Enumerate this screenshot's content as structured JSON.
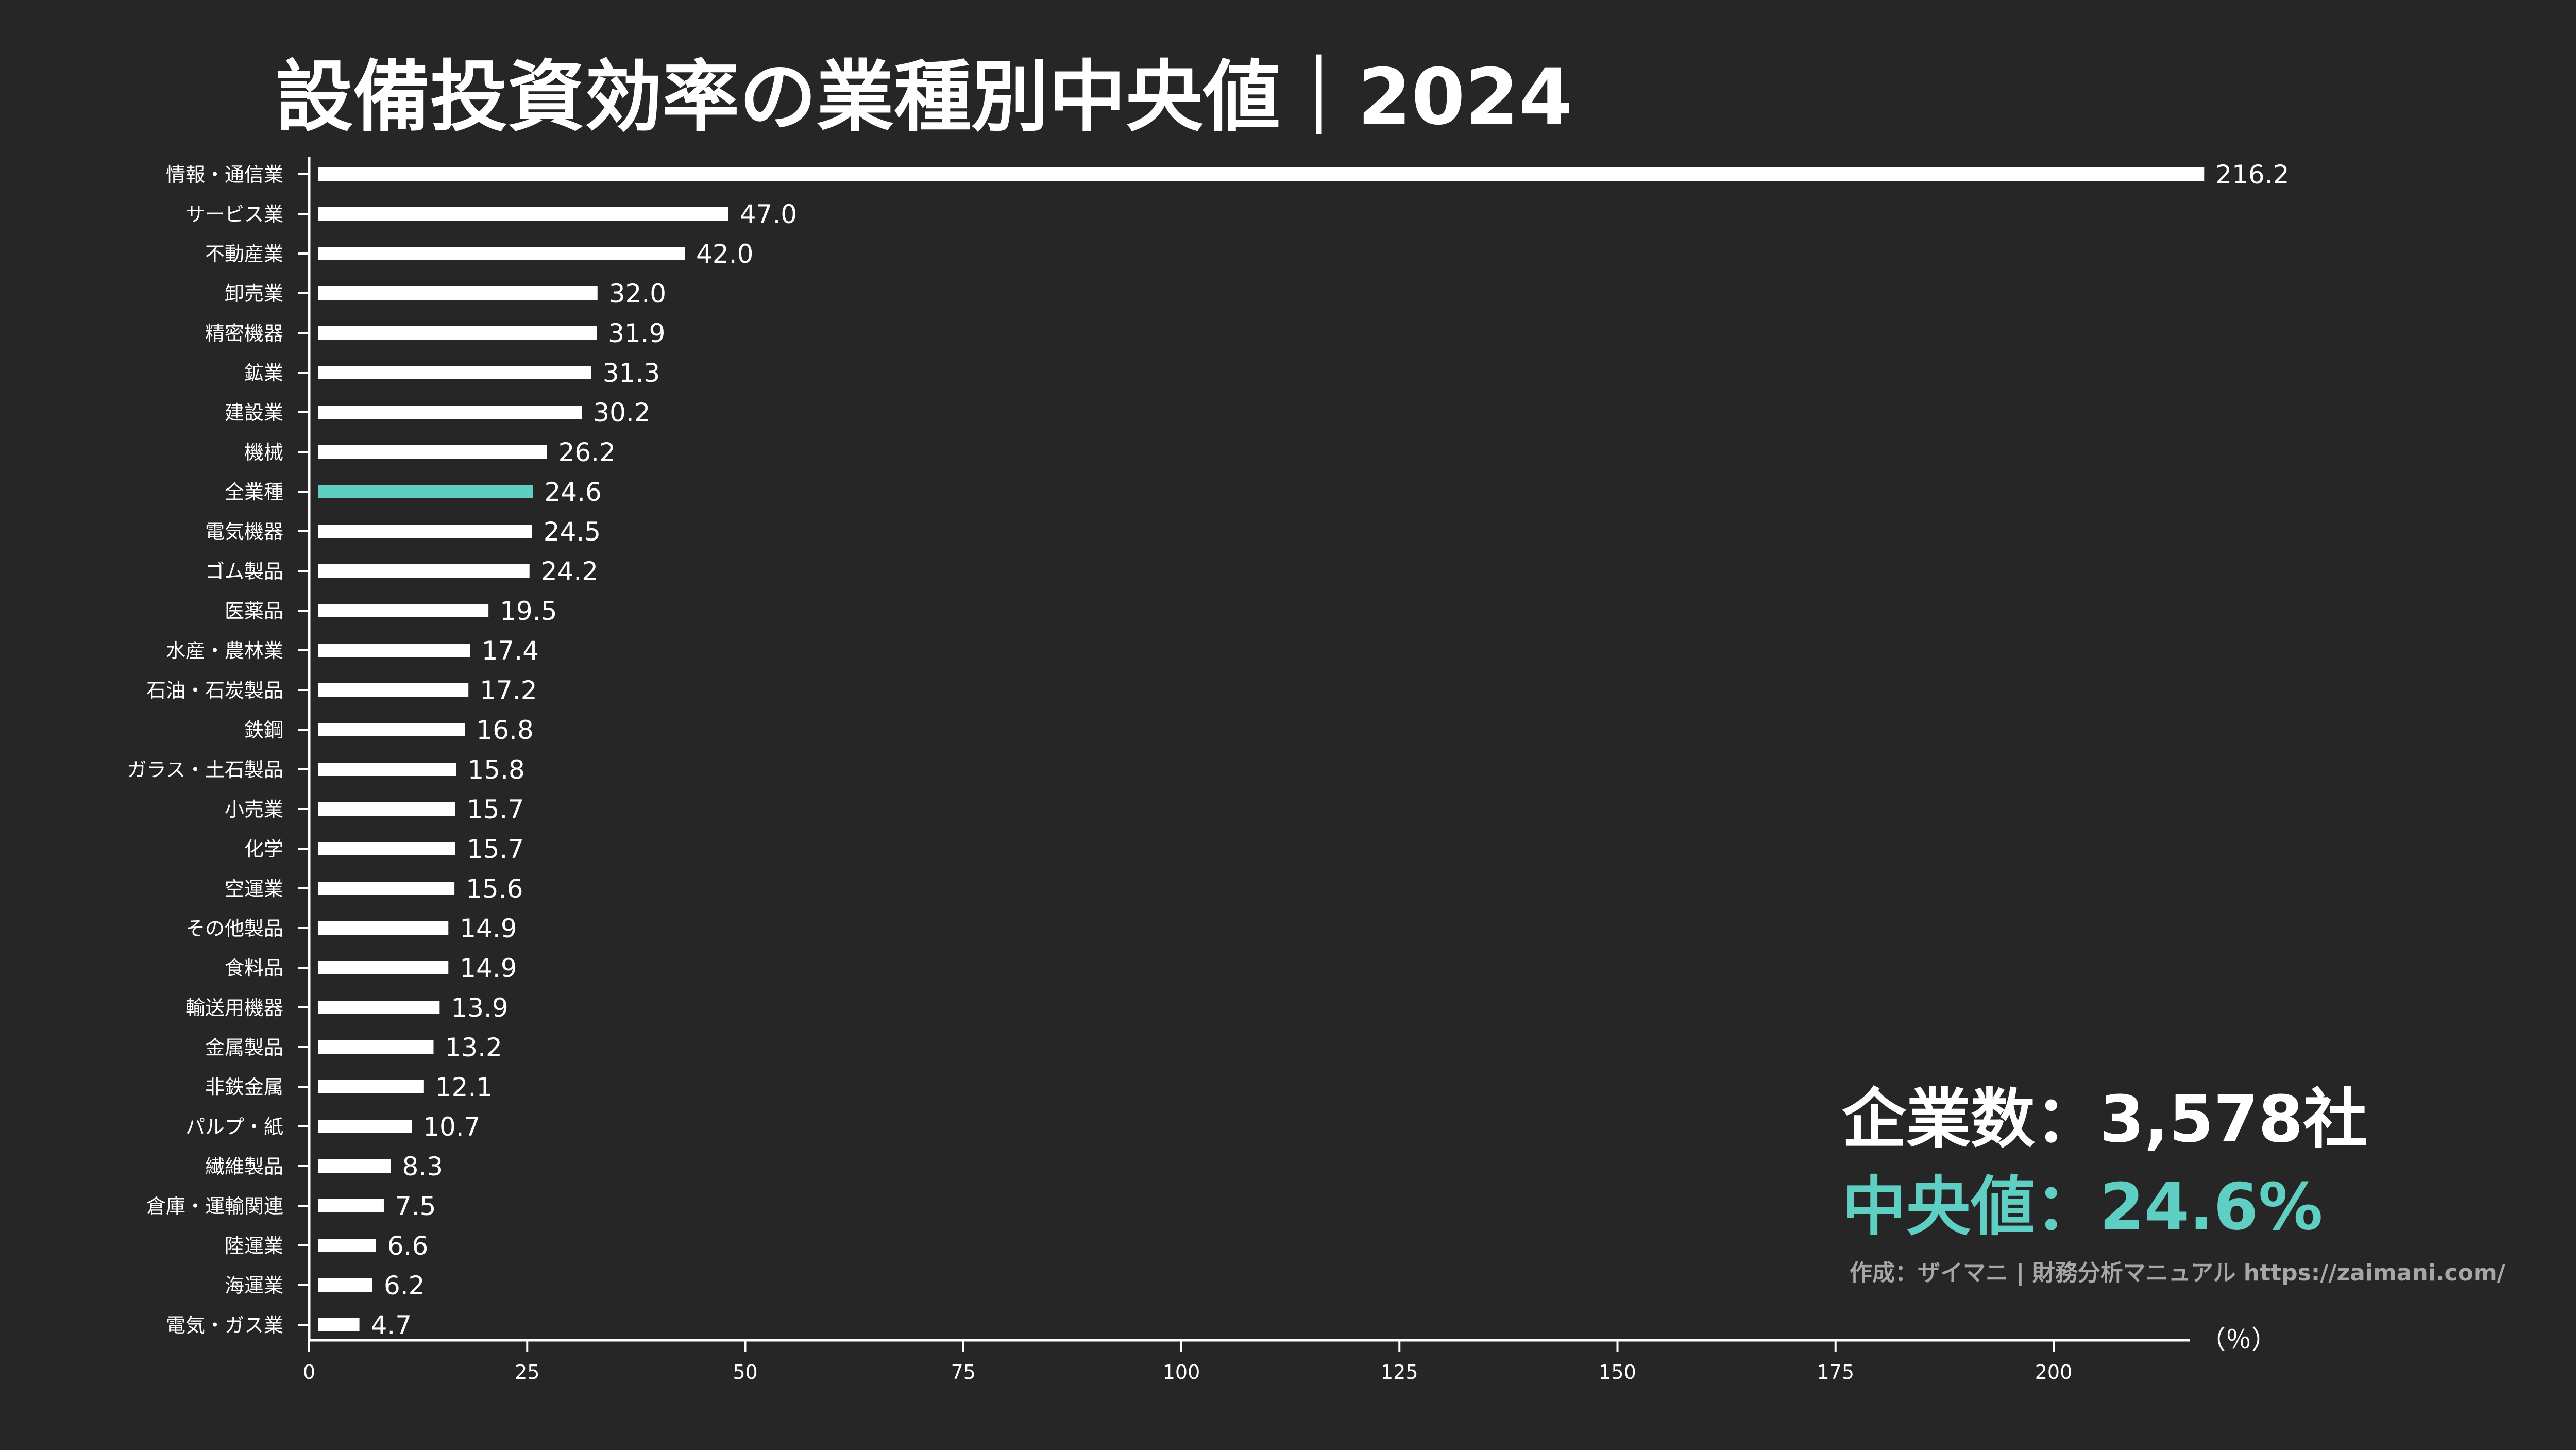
{
  "colors": {
    "background": "#262626",
    "bar": "#ffffff",
    "highlight": "#5ecfc2",
    "credit": "#a6a6a6"
  },
  "chart_data": {
    "type": "bar",
    "orientation": "horizontal",
    "title": "設備投資効率の業種別中央値｜2024",
    "unit_label": "（％）",
    "xlim": [
      0,
      216.2
    ],
    "xticks": [
      0,
      25,
      50,
      75,
      100,
      125,
      150,
      175,
      200
    ],
    "grid": false,
    "highlight_category": "全業種",
    "categories": [
      "情報・通信業",
      "サービス業",
      "不動産業",
      "卸売業",
      "精密機器",
      "鉱業",
      "建設業",
      "機械",
      "全業種",
      "電気機器",
      "ゴム製品",
      "医薬品",
      "水産・農林業",
      "石油・石炭製品",
      "鉄鋼",
      "ガラス・土石製品",
      "小売業",
      "化学",
      "空運業",
      "その他製品",
      "食料品",
      "輸送用機器",
      "金属製品",
      "非鉄金属",
      "パルプ・紙",
      "繊維製品",
      "倉庫・運輸関連",
      "陸運業",
      "海運業",
      "電気・ガス業"
    ],
    "values": [
      216.2,
      47.0,
      42.0,
      32.0,
      31.9,
      31.3,
      30.2,
      26.2,
      24.6,
      24.5,
      24.2,
      19.5,
      17.4,
      17.2,
      16.8,
      15.8,
      15.7,
      15.7,
      15.6,
      14.9,
      14.9,
      13.9,
      13.2,
      12.1,
      10.7,
      8.3,
      7.5,
      6.6,
      6.2,
      4.7
    ],
    "value_labels": [
      "216.2",
      "47.0",
      "42.0",
      "32.0",
      "31.9",
      "31.3",
      "30.2",
      "26.2",
      "24.6",
      "24.5",
      "24.2",
      "19.5",
      "17.4",
      "17.2",
      "16.8",
      "15.8",
      "15.7",
      "15.7",
      "15.6",
      "14.9",
      "14.9",
      "13.9",
      "13.2",
      "12.1",
      "10.7",
      "8.3",
      "7.5",
      "6.6",
      "6.2",
      "4.7"
    ]
  },
  "stats": {
    "count_text": "企業数：3,578社",
    "median_text": "中央値：24.6%"
  },
  "credit": "作成：ザイマニ | 財務分析マニュアル https://zaimani.com/"
}
